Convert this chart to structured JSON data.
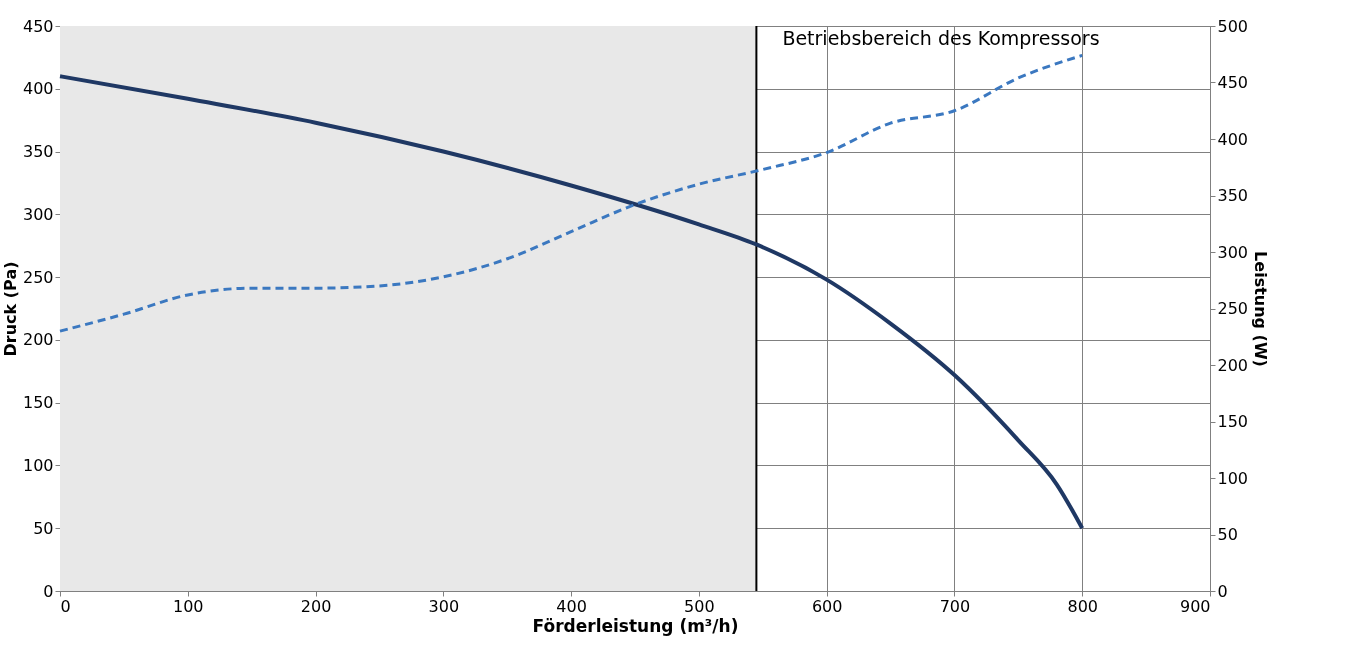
{
  "chart_data": {
    "type": "line",
    "xlabel": "Förderleistung (m³/h)",
    "ylabel": "Druck (Pa)",
    "y2label": "Leistung (W)",
    "xlim": [
      0,
      900
    ],
    "xticks": [
      0,
      100,
      200,
      300,
      400,
      500,
      600,
      700,
      800,
      900
    ],
    "ylim": [
      0,
      450
    ],
    "yticks": [
      0,
      50,
      100,
      150,
      200,
      250,
      300,
      350,
      400,
      450
    ],
    "y2lim": [
      0,
      500
    ],
    "y2ticks": [
      0,
      50,
      100,
      150,
      200,
      250,
      300,
      350,
      400,
      450,
      500
    ],
    "grid": true,
    "marker": "none",
    "bands": [
      {
        "axis": "x",
        "from": 0,
        "to": 545,
        "color": "#e8e8e8"
      }
    ],
    "ref_lines": [
      {
        "axis": "x",
        "value": 545,
        "label": "Betriebsbereich des Kompressors",
        "color": "#000000"
      }
    ],
    "series": [
      {
        "color": "#1f3864",
        "line_style": "solid",
        "x": [
          0,
          100,
          200,
          300,
          400,
          500,
          545,
          600,
          650,
          700,
          750,
          780,
          800
        ],
        "values": [
          410,
          392,
          373,
          350,
          323,
          292,
          276,
          248,
          213,
          172,
          120,
          85,
          50
        ]
      },
      {
        "color": "#3b78c0",
        "line_style": "dashed",
        "axis": "y2",
        "x": [
          0,
          50,
          100,
          150,
          200,
          250,
          300,
          350,
          400,
          450,
          500,
          550,
          600,
          650,
          700,
          750,
          800
        ],
        "values": [
          230,
          245,
          262,
          268,
          268,
          270,
          278,
          294,
          318,
          342,
          360,
          373,
          388,
          414,
          425,
          454,
          474
        ]
      }
    ]
  }
}
